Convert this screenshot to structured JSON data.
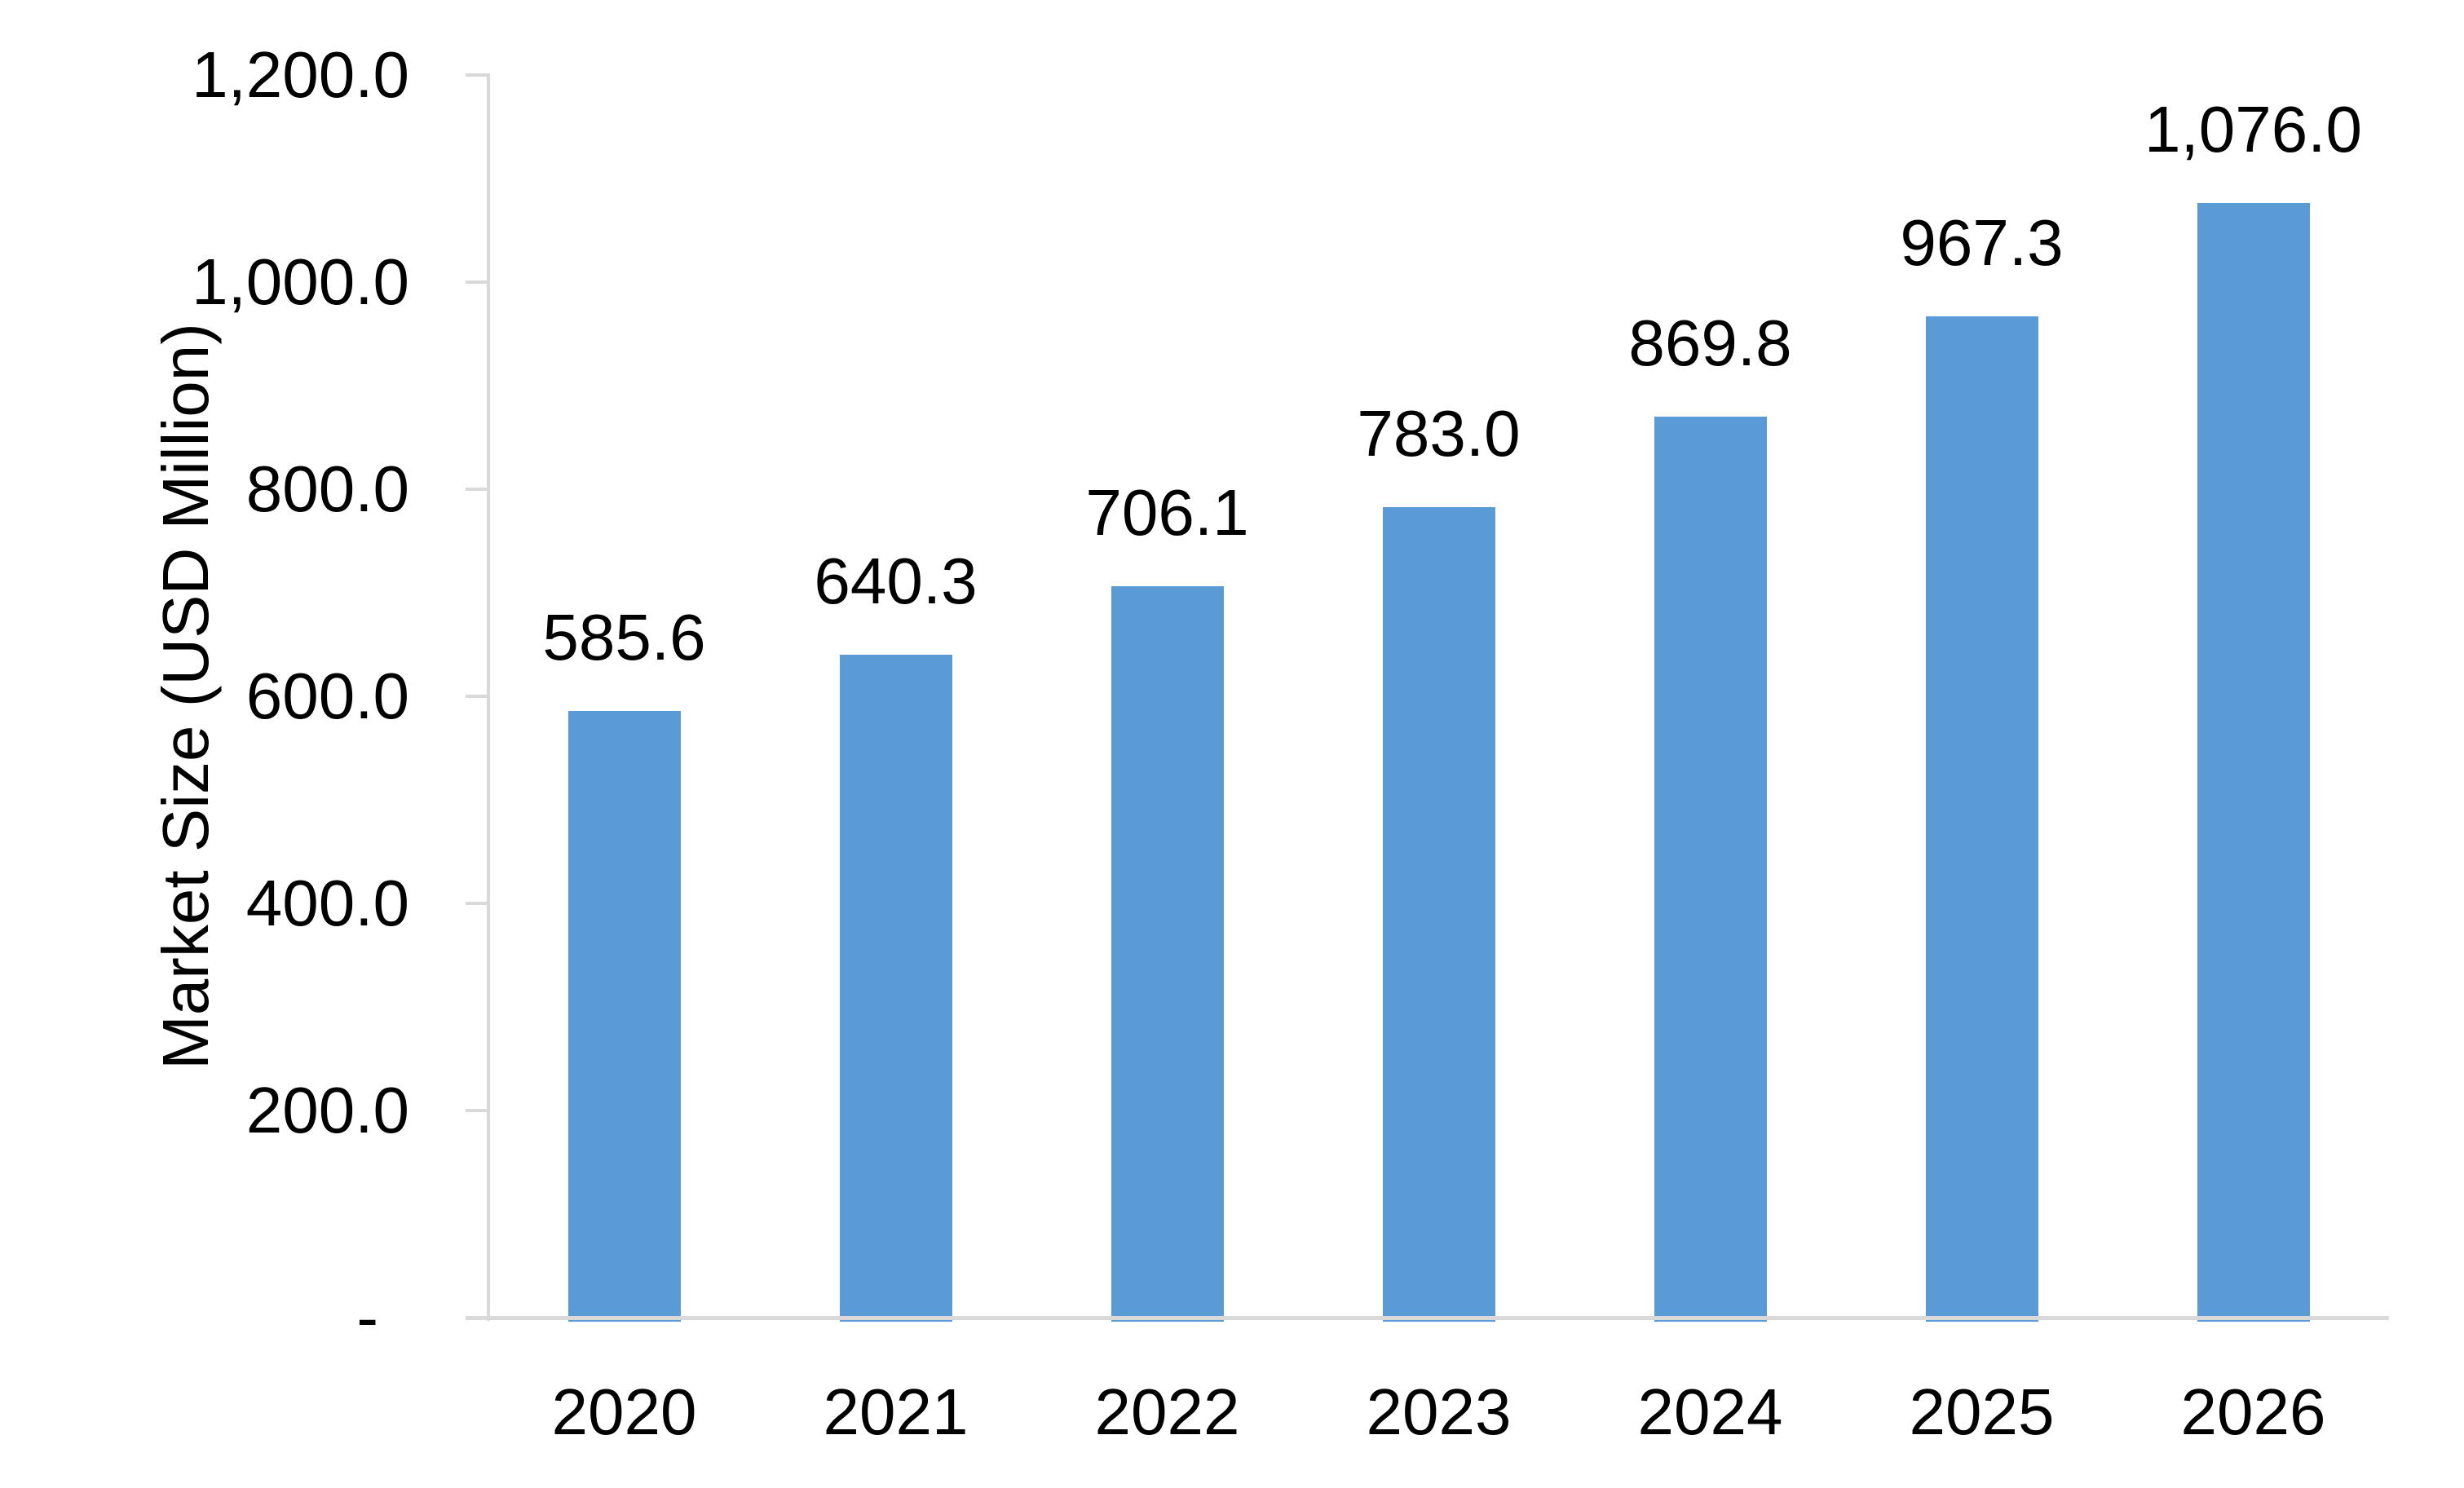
{
  "chart_data": {
    "type": "bar",
    "title": "",
    "xlabel": "",
    "ylabel": "Market Size (USD Million)",
    "categories": [
      "2020",
      "2021",
      "2022",
      "2023",
      "2024",
      "2025",
      "2026"
    ],
    "values": [
      585.6,
      640.3,
      706.1,
      783.0,
      869.8,
      967.3,
      1076.0
    ],
    "value_labels": [
      "585.6",
      "640.3",
      "706.1",
      "783.0",
      "869.8",
      "967.3",
      "1,076.0"
    ],
    "series_name": "Market Size",
    "ylim": [
      0,
      1200
    ],
    "y_ticks": [
      {
        "value": 1200,
        "label": "1,200.0"
      },
      {
        "value": 1000,
        "label": "1,000.0"
      },
      {
        "value": 800,
        "label": "800.0"
      },
      {
        "value": 600,
        "label": "600.0"
      },
      {
        "value": 400,
        "label": "400.0"
      },
      {
        "value": 200,
        "label": "200.0"
      },
      {
        "value": 0,
        "label": "-"
      }
    ],
    "grid": false,
    "legend": false,
    "legend_position": "none",
    "bar_color": "#5B9BD5",
    "axis_line_color": "#D9D9D9",
    "text_color": "#000000",
    "background_color": "#FFFFFF"
  }
}
